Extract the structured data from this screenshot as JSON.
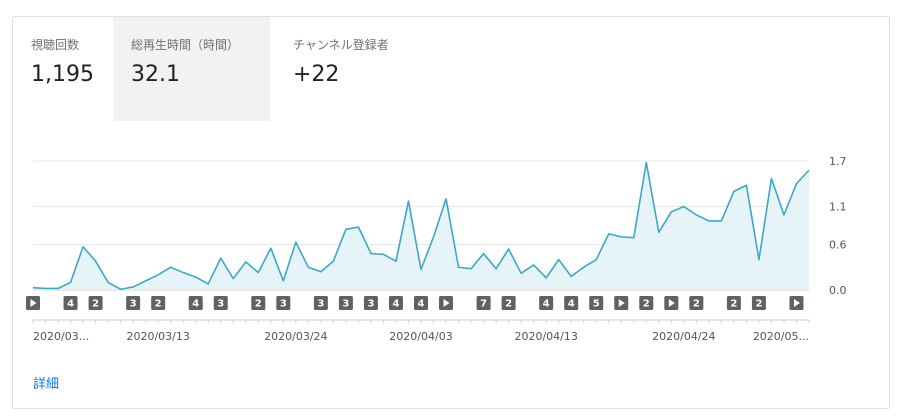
{
  "metrics": [
    {
      "label": "視聴回数",
      "value": "1,195"
    },
    {
      "label": "総再生時間（時間）",
      "value": "32.1"
    },
    {
      "label": "チャンネル登録者",
      "value": "+22"
    }
  ],
  "active_metric": 1,
  "details_link": "詳細",
  "colors": {
    "line": "#3ba7c9",
    "area": "#e6f4fa",
    "marker": "#616161",
    "link": "#1a73e8"
  },
  "chart_data": {
    "type": "area",
    "title": "",
    "xlabel": "",
    "ylabel": "",
    "ylim": [
      0,
      1.7
    ],
    "yticks": [
      "0.0",
      "0.6",
      "1.1",
      "1.7"
    ],
    "x_tick_labels": [
      "2020/03...",
      "2020/03/13",
      "2020/03/24",
      "2020/04/03",
      "2020/04/13",
      "2020/04/24",
      "2020/05..."
    ],
    "x_tick_index": [
      0,
      10,
      21,
      31,
      41,
      52,
      62
    ],
    "values": [
      0.03,
      0.02,
      0.02,
      0.1,
      0.57,
      0.38,
      0.1,
      0.01,
      0.04,
      0.12,
      0.2,
      0.3,
      0.23,
      0.17,
      0.08,
      0.42,
      0.15,
      0.37,
      0.23,
      0.55,
      0.12,
      0.63,
      0.3,
      0.24,
      0.38,
      0.8,
      0.83,
      0.48,
      0.47,
      0.38,
      1.17,
      0.27,
      0.7,
      1.2,
      0.3,
      0.28,
      0.48,
      0.28,
      0.54,
      0.22,
      0.33,
      0.16,
      0.4,
      0.18,
      0.3,
      0.4,
      0.74,
      0.7,
      0.69,
      1.68,
      0.76,
      1.03,
      1.1,
      0.99,
      0.91,
      0.91,
      1.3,
      1.38,
      0.4,
      1.47,
      0.99,
      1.4,
      1.58
    ],
    "markers": [
      {
        "index": 0,
        "label": "play"
      },
      {
        "index": 3,
        "label": "4"
      },
      {
        "index": 5,
        "label": "2"
      },
      {
        "index": 8,
        "label": "3"
      },
      {
        "index": 10,
        "label": "2"
      },
      {
        "index": 13,
        "label": "4"
      },
      {
        "index": 15,
        "label": "3"
      },
      {
        "index": 18,
        "label": "2"
      },
      {
        "index": 20,
        "label": "3"
      },
      {
        "index": 23,
        "label": "3"
      },
      {
        "index": 25,
        "label": "3"
      },
      {
        "index": 27,
        "label": "3"
      },
      {
        "index": 29,
        "label": "4"
      },
      {
        "index": 31,
        "label": "4"
      },
      {
        "index": 33,
        "label": "play"
      },
      {
        "index": 36,
        "label": "7"
      },
      {
        "index": 38,
        "label": "2"
      },
      {
        "index": 41,
        "label": "4"
      },
      {
        "index": 43,
        "label": "4"
      },
      {
        "index": 45,
        "label": "5"
      },
      {
        "index": 47,
        "label": "play"
      },
      {
        "index": 49,
        "label": "2"
      },
      {
        "index": 51,
        "label": "play"
      },
      {
        "index": 53,
        "label": "2"
      },
      {
        "index": 56,
        "label": "2"
      },
      {
        "index": 58,
        "label": "2"
      },
      {
        "index": 61,
        "label": "play"
      }
    ]
  }
}
